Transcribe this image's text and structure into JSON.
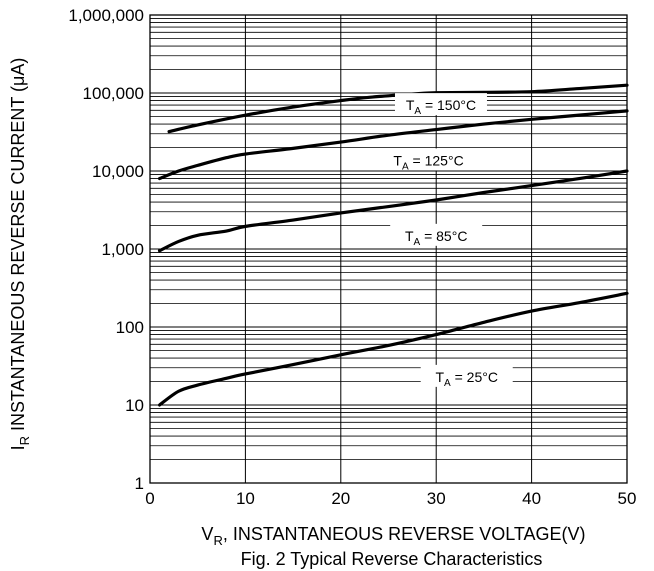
{
  "chart_data": {
    "type": "line",
    "title": "",
    "caption": "Fig. 2  Typical Reverse Characteristics",
    "xlabel": {
      "main": "V",
      "sub": "R",
      "rest": ", INSTANTANEOUS REVERSE VOLTAGE(V)"
    },
    "ylabel": {
      "main": "I",
      "sub": "R",
      "rest": " INSTANTANEOUS REVERSE CURRENT (μA)"
    },
    "xlim": [
      0,
      50
    ],
    "ylim": [
      1,
      1000000
    ],
    "yscale": "log",
    "grid": true,
    "x_ticks": [
      {
        "value": 0,
        "label": "0"
      },
      {
        "value": 10,
        "label": "10"
      },
      {
        "value": 20,
        "label": "20"
      },
      {
        "value": 30,
        "label": "30"
      },
      {
        "value": 40,
        "label": "40"
      },
      {
        "value": 50,
        "label": "50"
      }
    ],
    "y_ticks": [
      {
        "value": 1,
        "label": "1"
      },
      {
        "value": 10,
        "label": "10"
      },
      {
        "value": 100,
        "label": "100"
      },
      {
        "value": 1000,
        "label": "1,000"
      },
      {
        "value": 10000,
        "label": "10,000"
      },
      {
        "value": 100000,
        "label": "100,000"
      },
      {
        "value": 1000000,
        "label": "1,000,000"
      }
    ],
    "series": [
      {
        "name": "T_A = 150°C",
        "label": {
          "t": "T",
          "sub": "A",
          "rest": " = 150°C"
        },
        "color": "#000000",
        "points": [
          [
            2,
            32000
          ],
          [
            5,
            39000
          ],
          [
            10,
            52000
          ],
          [
            15,
            66000
          ],
          [
            20,
            80000
          ],
          [
            23,
            88000
          ],
          [
            28,
            98000
          ],
          [
            30,
            101000
          ],
          [
            35,
            102000
          ],
          [
            40,
            104000
          ],
          [
            45,
            114000
          ],
          [
            50,
            126000
          ]
        ]
      },
      {
        "name": "T_A = 125°C",
        "label": {
          "t": "T",
          "sub": "A",
          "rest": " = 125°C"
        },
        "color": "#000000",
        "points": [
          [
            1,
            8000
          ],
          [
            3,
            10000
          ],
          [
            5,
            11800
          ],
          [
            8,
            14800
          ],
          [
            10,
            16500
          ],
          [
            15,
            19500
          ],
          [
            20,
            23500
          ],
          [
            25,
            28800
          ],
          [
            30,
            34000
          ],
          [
            35,
            40000
          ],
          [
            40,
            46000
          ],
          [
            45,
            52000
          ],
          [
            50,
            59000
          ]
        ]
      },
      {
        "name": "T_A = 85°C",
        "label": {
          "t": "T",
          "sub": "A",
          "rest": " = 85°C"
        },
        "color": "#000000",
        "points": [
          [
            1,
            950
          ],
          [
            3,
            1250
          ],
          [
            5,
            1500
          ],
          [
            8,
            1700
          ],
          [
            10,
            1950
          ],
          [
            15,
            2350
          ],
          [
            20,
            2900
          ],
          [
            25,
            3500
          ],
          [
            30,
            4250
          ],
          [
            35,
            5300
          ],
          [
            40,
            6500
          ],
          [
            45,
            8000
          ],
          [
            50,
            10000
          ]
        ]
      },
      {
        "name": "T_A = 25°C",
        "label": {
          "t": "T",
          "sub": "A",
          "rest": " = 25°C"
        },
        "color": "#000000",
        "points": [
          [
            1,
            10
          ],
          [
            3,
            15
          ],
          [
            5,
            18
          ],
          [
            8,
            22
          ],
          [
            10,
            25
          ],
          [
            15,
            33
          ],
          [
            20,
            44
          ],
          [
            25,
            58
          ],
          [
            30,
            80
          ],
          [
            35,
            115
          ],
          [
            40,
            160
          ],
          [
            45,
            205
          ],
          [
            50,
            270
          ]
        ]
      }
    ]
  }
}
